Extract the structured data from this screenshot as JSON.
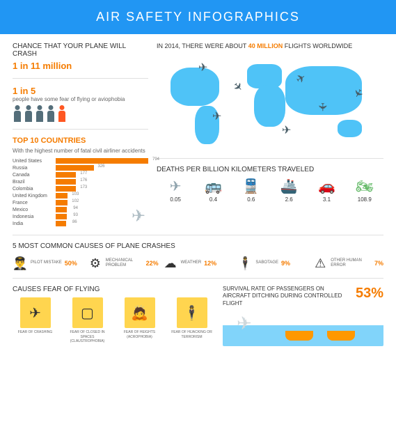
{
  "title": "AIR SAFETY INFOGRAPHICS",
  "colors": {
    "accent": "#f57c00",
    "blue": "#2196f3",
    "map": "#4fc3f7",
    "person": "#546e7a",
    "personHl": "#ff5722",
    "fearBox": "#ffd54f"
  },
  "crash_chance": {
    "label": "Chance that your plane will crash",
    "value": "1 in 11 million"
  },
  "fear_stat": {
    "value": "1 in 5",
    "label": "people have some fear of flying or aviophobia",
    "people_total": 5,
    "people_highlight_index": 4
  },
  "top10": {
    "title": "Top 10 countries",
    "subtitle": "With the highest number of fatal civil airliner accidents",
    "max": 794,
    "rows": [
      {
        "name": "United States",
        "val": 794
      },
      {
        "name": "Russia",
        "val": 326
      },
      {
        "name": "Canada",
        "val": 177
      },
      {
        "name": "Brazil",
        "val": 176
      },
      {
        "name": "Colombia",
        "val": 173
      },
      {
        "name": "United Kingdom",
        "val": 103
      },
      {
        "name": "France",
        "val": 102
      },
      {
        "name": "Mexico",
        "val": 94
      },
      {
        "name": "Indonesia",
        "val": 93
      },
      {
        "name": "India",
        "val": 86
      }
    ]
  },
  "map": {
    "prefix": "IN 2014, THERE WERE ABOUT ",
    "highlight": "40 MILLION",
    "suffix": " FLIGHTS WORLDWIDE"
  },
  "deaths": {
    "title": "DEATHS PER BILLION KILOMETERS TRAVELED",
    "items": [
      {
        "name": "plane",
        "val": "0.05",
        "color": "#90a4ae"
      },
      {
        "name": "bus",
        "val": "0.4",
        "color": "#ffb74d"
      },
      {
        "name": "train",
        "val": "0.6",
        "color": "#90a4ae"
      },
      {
        "name": "ship",
        "val": "2.6",
        "color": "#b0bec5"
      },
      {
        "name": "car",
        "val": "3.1",
        "color": "#ef5350"
      },
      {
        "name": "motorcycle",
        "val": "108.9",
        "color": "#66bb6a"
      }
    ]
  },
  "causes": {
    "title": "5 MOST COMMON CAUSES OF PLANE CRASHES",
    "items": [
      {
        "name": "PILOT MISTAKE",
        "pct": "50%",
        "icon": "pilot"
      },
      {
        "name": "MECHANICAL PROBLEM",
        "pct": "22%",
        "icon": "gears"
      },
      {
        "name": "WEATHER",
        "pct": "12%",
        "icon": "cloud"
      },
      {
        "name": "SABOTAGE",
        "pct": "9%",
        "icon": "terrorist"
      },
      {
        "name": "OTHER HUMAN ERROR",
        "pct": "7%",
        "icon": "warning"
      }
    ]
  },
  "fears": {
    "title": "CAUSES FEAR OF FLYING",
    "items": [
      {
        "label": "FEAR OF CRASHING",
        "sub": "",
        "icon": "crash"
      },
      {
        "label": "FEAR OF CLOSED IN SPACES",
        "sub": "(CLAUSTROPHOBIA)",
        "icon": "closed"
      },
      {
        "label": "FEAR OF HEIGHTS",
        "sub": "(ACROPHOBIA)",
        "icon": "heights"
      },
      {
        "label": "FEAR OF HIJACKING OR TERRORISM",
        "sub": "",
        "icon": "hijack"
      }
    ]
  },
  "survival": {
    "text": "Survival rate of passengers on aircraft ditching during controlled flight",
    "pct": "53%"
  }
}
